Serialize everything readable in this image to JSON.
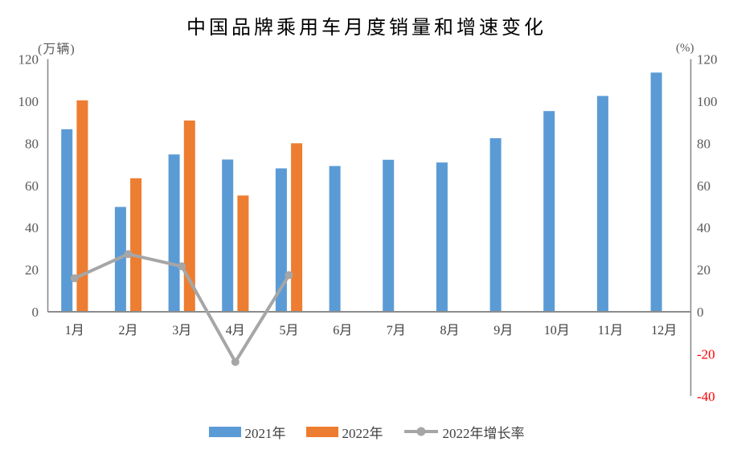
{
  "chart_data": {
    "type": "bar",
    "combo_note": "clustered bars (left axis) + one line series (right axis)",
    "title": "中国品牌乘用车月度销量和增速变化",
    "categories": [
      "1月",
      "2月",
      "3月",
      "4月",
      "5月",
      "6月",
      "7月",
      "8月",
      "9月",
      "10月",
      "11月",
      "12月"
    ],
    "series": [
      {
        "name": "2021年",
        "type": "bar",
        "axis": "left",
        "color": "#5B9BD5",
        "values": [
          86.7,
          49.8,
          74.7,
          72.3,
          68.1,
          69.2,
          72.2,
          70.9,
          82.4,
          95.3,
          102.5,
          113.6
        ]
      },
      {
        "name": "2022年",
        "type": "bar",
        "axis": "left",
        "color": "#ED7D31",
        "values": [
          100.4,
          63.4,
          90.8,
          55.2,
          80.0,
          null,
          null,
          null,
          null,
          null,
          null,
          null
        ]
      },
      {
        "name": "2022年增长率",
        "type": "line",
        "axis": "right",
        "color": "#A6A6A6",
        "values": [
          15.9,
          27.4,
          21.6,
          -23.8,
          17.4,
          null,
          null,
          null,
          null,
          null,
          null,
          null
        ]
      }
    ],
    "left_axis": {
      "unit_label": "(万辆)",
      "min": 0,
      "max": 120,
      "step": 20,
      "tick_color": "#595959"
    },
    "right_axis": {
      "unit_label": "(%)",
      "min": -40,
      "max": 120,
      "step": 20,
      "tick_color": "#595959",
      "negative_tick_color": "#FF0000"
    },
    "x_axis": {
      "label_color": "#3F3F3F"
    },
    "axis_line_color": "#8C8C8C",
    "grid": false,
    "legend_position": "bottom"
  }
}
